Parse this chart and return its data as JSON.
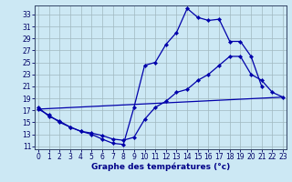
{
  "title": "Graphe des températures (°c)",
  "bg_color": "#cce8f4",
  "grid_color": "#a0b8c0",
  "line_color": "#0000aa",
  "xlim": [
    -0.3,
    23.3
  ],
  "ylim": [
    10.5,
    34.5
  ],
  "xticks": [
    0,
    1,
    2,
    3,
    4,
    5,
    6,
    7,
    8,
    9,
    10,
    11,
    12,
    13,
    14,
    15,
    16,
    17,
    18,
    19,
    20,
    21,
    22,
    23
  ],
  "yticks": [
    11,
    13,
    15,
    17,
    19,
    21,
    23,
    25,
    27,
    29,
    31,
    33
  ],
  "line1_x": [
    0,
    1,
    2,
    3,
    4,
    5,
    6,
    7,
    8,
    9,
    10,
    11,
    12,
    13,
    14,
    15,
    16,
    17,
    18,
    19,
    20,
    21
  ],
  "line1_y": [
    17.5,
    16.0,
    15.2,
    14.2,
    13.5,
    13.0,
    12.2,
    11.5,
    11.3,
    17.5,
    24.5,
    25.0,
    28.0,
    30.0,
    34.0,
    32.5,
    32.0,
    32.2,
    28.5,
    28.5,
    26.0,
    21.0
  ],
  "line2_x": [
    0,
    1,
    2,
    3,
    4,
    5,
    6,
    7,
    8,
    9,
    10,
    11,
    12,
    13,
    14,
    15,
    16,
    17,
    18,
    19,
    20,
    21,
    22,
    23
  ],
  "line2_y": [
    17.2,
    16.2,
    15.0,
    14.2,
    13.5,
    13.2,
    12.8,
    12.2,
    12.0,
    12.5,
    15.5,
    17.5,
    18.5,
    20.0,
    20.5,
    22.0,
    23.0,
    24.5,
    26.0,
    26.0,
    23.0,
    22.0,
    20.0,
    19.2
  ],
  "line3_x": [
    0,
    23
  ],
  "line3_y": [
    17.2,
    19.2
  ],
  "marker_size": 2.2,
  "linewidth": 0.9,
  "tick_fontsize": 5.5,
  "xlabel_fontsize": 6.5
}
